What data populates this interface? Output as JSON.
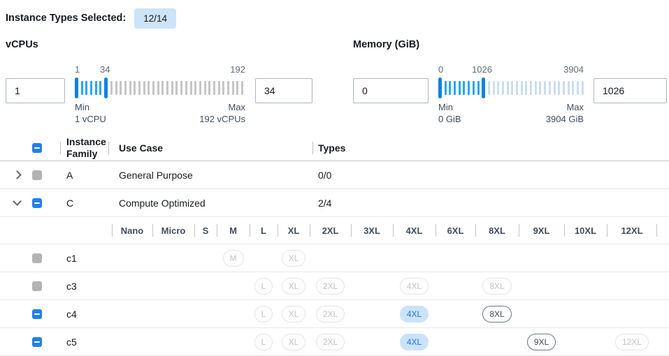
{
  "header": {
    "label": "Instance Types Selected:",
    "badge": "12/14"
  },
  "colors": {
    "accent_blue": "#2180ec",
    "slider_handle": "#1080e8",
    "slider_range_tick": "#29a5f2",
    "selected_chip_bg": "#cbe3fa",
    "selected_chip_text": "#1774dd",
    "badge_bg": "#cde3f7"
  },
  "filters": [
    {
      "title": "vCPUs",
      "min_input": "1",
      "max_input": "34",
      "scale_labels": [
        "1",
        "34",
        "192"
      ],
      "min_caption": "Min",
      "min_value": "1 vCPU",
      "max_caption": "Max",
      "max_value": "192 vCPUs"
    },
    {
      "title": "Memory (GiB)",
      "min_input": "0",
      "max_input": "1026",
      "scale_labels": [
        "0",
        "1026",
        "3904"
      ],
      "min_caption": "Min",
      "min_value": "0 GiB",
      "max_caption": "Max",
      "max_value": "3904 GiB"
    }
  ],
  "table": {
    "columns": {
      "family": "Instance Family",
      "use_case": "Use Case",
      "types": "Types"
    },
    "select_all_state": "indeterminate",
    "families": [
      {
        "name": "A",
        "use_case": "General Purpose",
        "types": "0/0",
        "expanded": false,
        "checkbox": "disabled"
      },
      {
        "name": "C",
        "use_case": "Compute Optimized",
        "types": "2/4",
        "expanded": true,
        "checkbox": "indeterminate"
      }
    ],
    "sizes": [
      "Nano",
      "Micro",
      "S",
      "M",
      "L",
      "XL",
      "2XL",
      "3XL",
      "4XL",
      "6XL",
      "8XL",
      "9XL",
      "10XL",
      "12XL"
    ],
    "instance_rows": [
      {
        "name": "c1",
        "checkbox": "disabled",
        "chips": [
          {
            "size": "M",
            "state": "disabled"
          },
          {
            "size": "XL",
            "state": "disabled"
          }
        ]
      },
      {
        "name": "c3",
        "checkbox": "disabled",
        "chips": [
          {
            "size": "L",
            "state": "disabled"
          },
          {
            "size": "XL",
            "state": "disabled"
          },
          {
            "size": "2XL",
            "state": "disabled"
          },
          {
            "size": "4XL",
            "state": "disabled"
          },
          {
            "size": "8XL",
            "state": "disabled"
          }
        ]
      },
      {
        "name": "c4",
        "checkbox": "indeterminate",
        "chips": [
          {
            "size": "L",
            "state": "disabled"
          },
          {
            "size": "XL",
            "state": "disabled"
          },
          {
            "size": "2XL",
            "state": "disabled"
          },
          {
            "size": "4XL",
            "state": "selected"
          },
          {
            "size": "8XL",
            "state": "enabled"
          }
        ]
      },
      {
        "name": "c5",
        "checkbox": "indeterminate",
        "chips": [
          {
            "size": "L",
            "state": "disabled"
          },
          {
            "size": "XL",
            "state": "disabled"
          },
          {
            "size": "2XL",
            "state": "disabled"
          },
          {
            "size": "4XL",
            "state": "selected"
          },
          {
            "size": "9XL",
            "state": "enabled"
          },
          {
            "size": "12XL",
            "state": "disabled"
          }
        ]
      }
    ]
  }
}
